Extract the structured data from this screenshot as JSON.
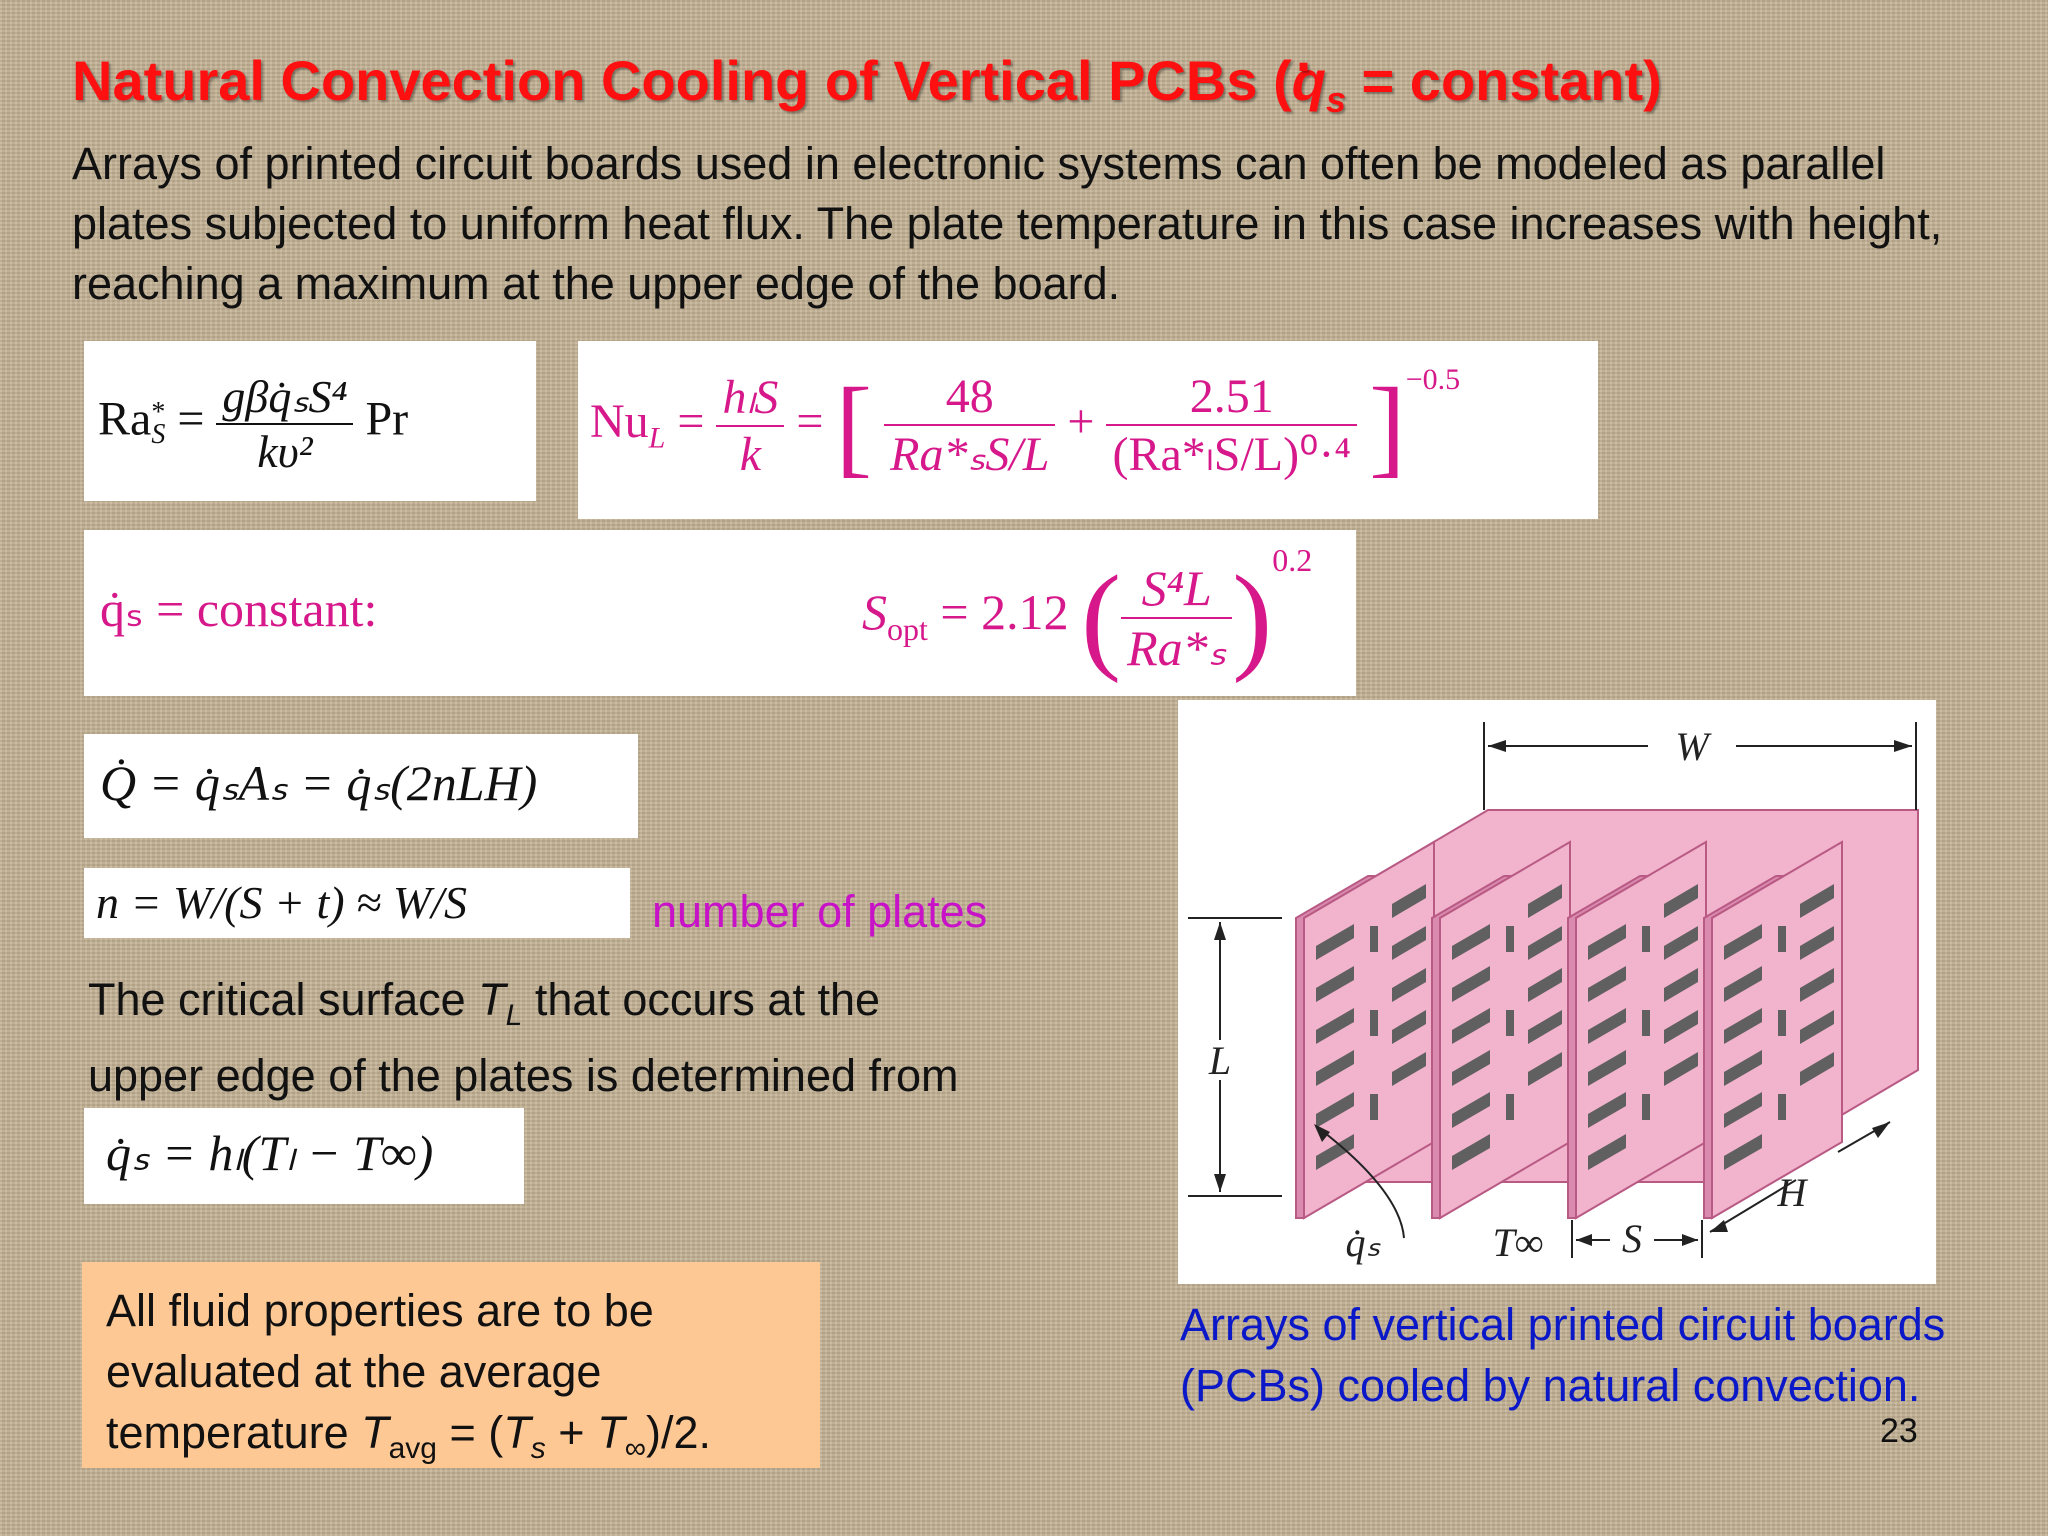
{
  "slide": {
    "title_main": "Natural Convection Cooling of Vertical PCBs (",
    "title_q": "q",
    "title_s": "s",
    "title_end": " = constant)",
    "intro": "Arrays of printed circuit boards used in electronic systems can often be modeled as parallel plates subjected to uniform heat flux. The plate temperature in this case increases with height, reaching a maximum at the upper edge of the board.",
    "number_of_plates": "number of plates",
    "critical_line1_a": "The critical surface ",
    "critical_T": "T",
    "critical_L": "L",
    "critical_line1_b": " that occurs at the",
    "critical_line2": "upper edge of the plates is determined from",
    "properties_a": "All fluid properties are to be evaluated at the average temperature ",
    "properties_T": "T",
    "properties_avg": "avg",
    "properties_b": " = (",
    "properties_Ts": "T",
    "properties_s": "s",
    "properties_c": " + ",
    "properties_Tinf": "T",
    "properties_inf": "∞",
    "properties_d": ")/2.",
    "caption": "Arrays of vertical printed circuit boards (PCBs) cooled by natural convection.",
    "page_number": "23"
  },
  "equations": {
    "ra_lhs": "Ra",
    "ra_star": "*",
    "ra_sub": "S",
    "ra_eq": "=",
    "ra_num": "gβq̇ₛS⁴",
    "ra_den": "kυ²",
    "ra_pr": "Pr",
    "nu_lhs": "Nu",
    "nu_sub": "L",
    "nu_frac_num": "hₗS",
    "nu_frac_den": "k",
    "nu_48": "48",
    "nu_den1": "Ra*ₛS/L",
    "nu_plus": "+",
    "nu_251": "2.51",
    "nu_den2": "(Ra*ₗS/L)⁰·⁴",
    "nu_exp": "−0.5",
    "qs_label": "q̇ₛ = constant:",
    "sopt_lhs": "S",
    "sopt_sub": "opt",
    "sopt_eq": "= 2.12",
    "sopt_num": "S⁴L",
    "sopt_den": "Ra*ₛ",
    "sopt_exp": "0.2",
    "Q_eq": "Q̇ = q̇ₛAₛ = q̇ₛ(2nLH)",
    "n_eq": "n = W/(S + t) ≈ W/S",
    "qs_eq": "q̇ₛ = hₗ(Tₗ − T∞)"
  },
  "figure": {
    "W": "W",
    "L": "L",
    "H": "H",
    "S": "S",
    "qs": "q̇ₛ",
    "Tinf": "T∞",
    "plate_fill": "#f2b3cc",
    "plate_edge": "#b85a84",
    "slot_fill": "#606060"
  }
}
